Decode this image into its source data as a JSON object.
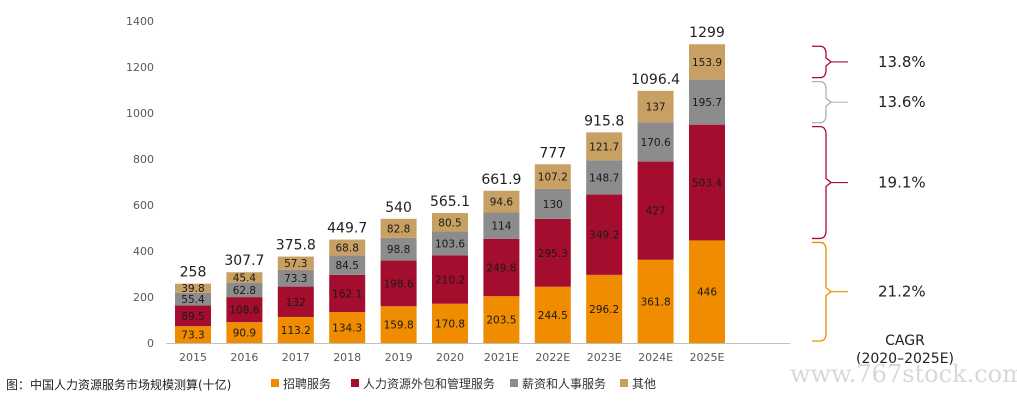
{
  "chart_data": {
    "type": "bar",
    "stacked": true,
    "categories": [
      "2015",
      "2016",
      "2017",
      "2018",
      "2019",
      "2020",
      "2021E",
      "2022E",
      "2023E",
      "2024E",
      "2025E"
    ],
    "series": [
      {
        "name": "招聘服务",
        "color": "#F08C00",
        "values": [
          73.3,
          90.9,
          113.2,
          134.3,
          159.8,
          170.8,
          203.5,
          244.5,
          296.2,
          361.8,
          446
        ]
      },
      {
        "name": "人力资源外包和管理服务",
        "color": "#A50D2E",
        "values": [
          89.5,
          108.6,
          132,
          162.1,
          198.6,
          210.2,
          249.8,
          295.3,
          349.2,
          427,
          503.4
        ]
      },
      {
        "name": "薪资和人事服务",
        "color": "#8C8C8C",
        "values": [
          55.4,
          62.8,
          73.3,
          84.5,
          98.8,
          103.6,
          114,
          130,
          148.7,
          170.6,
          195.7
        ]
      },
      {
        "name": "其他",
        "color": "#C9A063",
        "values": [
          39.8,
          45.4,
          57.3,
          68.8,
          82.8,
          80.5,
          94.6,
          107.2,
          121.7,
          137,
          153.9
        ]
      }
    ],
    "totals": [
      "258",
      "307.7",
      "375.8",
      "449.7",
      "540",
      "565.1",
      "661.9",
      "777",
      "915.8",
      "1096.4",
      "1299"
    ],
    "ylim": [
      0,
      1400
    ],
    "yticks": [
      0,
      200,
      400,
      600,
      800,
      1000,
      1200,
      1400
    ],
    "cagr": {
      "title_line1": "CAGR",
      "title_line2": "(2020–2025E)",
      "items": [
        {
          "series": "其他",
          "value": "13.8%",
          "color": "#A50D2E"
        },
        {
          "series": "薪资和人事服务",
          "value": "13.6%",
          "color": "#B0B0B0"
        },
        {
          "series": "人力资源外包和管理服务",
          "value": "19.1%",
          "color": "#A50D2E"
        },
        {
          "series": "招聘服务",
          "value": "21.2%",
          "color": "#F08C00"
        }
      ]
    },
    "legend_position": "bottom",
    "caption": "图：中国人力资源服务市场规模测算(十亿)"
  },
  "watermark": "www.767stock.com"
}
